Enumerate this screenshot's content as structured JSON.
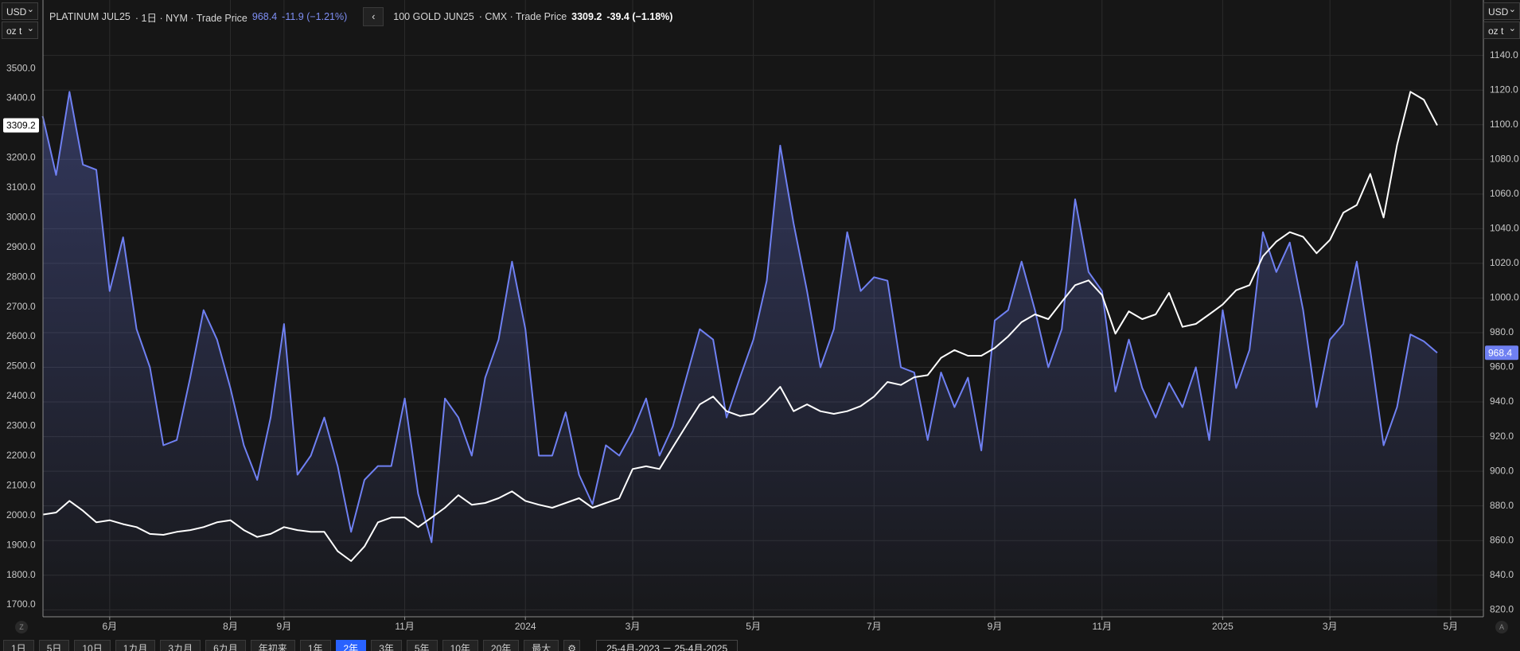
{
  "header": {
    "meta_platinum": "· 1日 · NYM · Trade Price",
    "change_platinum": "-11.9 (−1.21%)",
    "meta_gold": "· CMX · Trade Price",
    "change_gold": "-39.4 (−1.18%)",
    "currency_left": "USD",
    "unit_left": "oz t",
    "currency_right": "USD",
    "unit_right": "oz t"
  },
  "toolbar": {
    "left_button": "Z",
    "right_button": "A",
    "ranges": [
      "1日",
      "5日",
      "10日",
      "1カ月",
      "3カ月",
      "6カ月",
      "年初来",
      "1年",
      "2年",
      "3年",
      "5年",
      "10年",
      "20年",
      "最大"
    ],
    "active": "2年",
    "date_range": "25-4月-2023 － 25-4月-2025"
  },
  "chart_data": {
    "type": "line",
    "categories": [
      null,
      null,
      null,
      null,
      null,
      "6月",
      null,
      null,
      null,
      null,
      null,
      null,
      null,
      null,
      "8月",
      null,
      null,
      null,
      "9月",
      null,
      null,
      null,
      null,
      null,
      null,
      null,
      null,
      "11月",
      null,
      null,
      null,
      null,
      null,
      null,
      null,
      null,
      "2024",
      null,
      null,
      null,
      null,
      null,
      null,
      null,
      "3月",
      null,
      null,
      null,
      null,
      null,
      null,
      null,
      null,
      "5月",
      null,
      null,
      null,
      null,
      null,
      null,
      null,
      null,
      "7月",
      null,
      null,
      null,
      null,
      null,
      null,
      null,
      null,
      "9月",
      null,
      null,
      null,
      null,
      null,
      null,
      null,
      "11月",
      null,
      null,
      null,
      null,
      null,
      null,
      null,
      null,
      "2025",
      null,
      null,
      null,
      null,
      null,
      null,
      null,
      "3月",
      null,
      null,
      null,
      null,
      null,
      null,
      null,
      null,
      "5月"
    ],
    "series": [
      {
        "name": "100 GOLD JUN25",
        "color": "#ffffff",
        "axis": "y",
        "values": [
          2003,
          2010,
          2049,
          2016,
          1977,
          1984,
          1971,
          1961,
          1938,
          1935,
          1945,
          1951,
          1961,
          1977,
          1984,
          1951,
          1928,
          1938,
          1961,
          1951,
          1945,
          1945,
          1880,
          1847,
          1896,
          1977,
          1993,
          1993,
          1961,
          1993,
          2026,
          2068,
          2036,
          2042,
          2058,
          2081,
          2049,
          2036,
          2026,
          2042,
          2058,
          2026,
          2042,
          2058,
          2156,
          2165,
          2156,
          2230,
          2302,
          2373,
          2399,
          2350,
          2334,
          2341,
          2383,
          2432,
          2350,
          2373,
          2350,
          2341,
          2350,
          2367,
          2399,
          2448,
          2438,
          2464,
          2471,
          2529,
          2555,
          2536,
          2536,
          2562,
          2601,
          2649,
          2675,
          2659,
          2717,
          2773,
          2789,
          2740,
          2610,
          2685,
          2659,
          2675,
          2747,
          2633,
          2643,
          2675,
          2708,
          2756,
          2773,
          2870,
          2919,
          2951,
          2935,
          2880,
          2925,
          3016,
          3042,
          3146,
          3000,
          3243,
          3422,
          3395,
          3309.2,
          null
        ]
      },
      {
        "name": "PLATINUM JUL25",
        "color": "#6f80f2",
        "axis": "y2",
        "values": [
          1105,
          1071,
          1119,
          1077,
          1074,
          1004,
          1035,
          982,
          960,
          915,
          918,
          954,
          993,
          976,
          948,
          915,
          895,
          931,
          985,
          898,
          909,
          931,
          903,
          865,
          895,
          903,
          903,
          942,
          887,
          859,
          942,
          931,
          909,
          954,
          976,
          1021,
          982,
          909,
          909,
          934,
          898,
          881,
          915,
          909,
          923,
          942,
          909,
          926,
          954,
          982,
          976,
          931,
          954,
          976,
          1010,
          1088,
          1043,
          1004,
          960,
          982,
          1038,
          1004,
          1012,
          1010,
          960,
          957,
          918,
          957,
          937,
          954,
          912,
          987,
          993,
          1021,
          993,
          960,
          982,
          1057,
          1015,
          1004,
          946,
          976,
          948,
          931,
          951,
          937,
          960,
          918,
          993,
          948,
          970,
          1038,
          1015,
          1032,
          993,
          937,
          976,
          985,
          1021,
          970,
          915,
          937,
          979,
          975,
          968.4,
          null
        ]
      }
    ],
    "ylim": [
      1660,
      3730
    ],
    "yticks": [
      {
        "value": 1700,
        "label": "1700.0"
      },
      {
        "value": 1800,
        "label": "1800.0"
      },
      {
        "value": 1900,
        "label": "1900.0"
      },
      {
        "value": 2000,
        "label": "2000.0"
      },
      {
        "value": 2100,
        "label": "2100.0"
      },
      {
        "value": 2200,
        "label": "2200.0"
      },
      {
        "value": 2300,
        "label": "2300.0"
      },
      {
        "value": 2400,
        "label": "2400.0"
      },
      {
        "value": 2500,
        "label": "2500.0"
      },
      {
        "value": 2600,
        "label": "2600.0"
      },
      {
        "value": 2700,
        "label": "2700.0"
      },
      {
        "value": 2800,
        "label": "2800.0"
      },
      {
        "value": 2900,
        "label": "2900.0"
      },
      {
        "value": 3000,
        "label": "3000.0"
      },
      {
        "value": 3100,
        "label": "3100.0"
      },
      {
        "value": 3200,
        "label": "3200.0"
      },
      {
        "value": 3300,
        "label": "3300.0"
      },
      {
        "value": 3400,
        "label": "3400.0"
      },
      {
        "value": 3500,
        "label": "3500.0"
      }
    ],
    "y2lim": [
      816,
      1172
    ],
    "y2ticks": [
      {
        "value": 820,
        "label": "820.0"
      },
      {
        "value": 840,
        "label": "840.0"
      },
      {
        "value": 860,
        "label": "860.0"
      },
      {
        "value": 880,
        "label": "880.0"
      },
      {
        "value": 900,
        "label": "900.0"
      },
      {
        "value": 920,
        "label": "920.0"
      },
      {
        "value": 940,
        "label": "940.0"
      },
      {
        "value": 960,
        "label": "960.0"
      },
      {
        "value": 980,
        "label": "980.0"
      },
      {
        "value": 1000,
        "label": "1000.0"
      },
      {
        "value": 1020,
        "label": "1020.0"
      },
      {
        "value": 1040,
        "label": "1040.0"
      },
      {
        "value": 1060,
        "label": "1060.0"
      },
      {
        "value": 1080,
        "label": "1080.0"
      },
      {
        "value": 1100,
        "label": "1100.0"
      },
      {
        "value": 1120,
        "label": "1120.0"
      },
      {
        "value": 1140,
        "label": "1140.0"
      }
    ],
    "grid": true,
    "area": "y2"
  }
}
